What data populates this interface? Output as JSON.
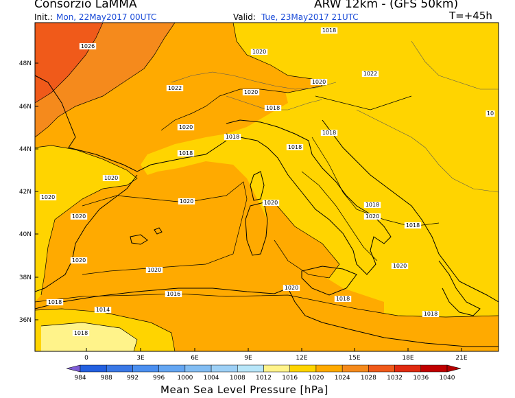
{
  "header": {
    "app_title": "Consorzio LaMMA",
    "model": "ARW 12km - (GFS 50km)",
    "init_label": "Init.:",
    "init_value": "Mon, 22May2017 00UTC",
    "valid_label": "Valid:",
    "valid_value": "Tue, 23May2017 21UTC",
    "forecast_hour": "T=+45h"
  },
  "map": {
    "lat_labels": [
      "48N",
      "46N",
      "44N",
      "42N",
      "40N",
      "38N",
      "36N"
    ],
    "lon_labels": [
      "0",
      "3E",
      "6E",
      "9E",
      "12E",
      "15E",
      "18E",
      "21E"
    ],
    "isobar_labels": [
      "1026",
      "1022",
      "1020",
      "1020",
      "1020",
      "1018",
      "1018",
      "1018",
      "1018",
      "1018",
      "1020",
      "1020",
      "1020",
      "1020",
      "1020",
      "1020",
      "1020",
      "1020",
      "1020",
      "1018",
      "1018",
      "1016",
      "1014",
      "1018",
      "1018",
      "1018",
      "1020",
      "1018",
      "1022",
      "1020",
      "1018",
      "10"
    ]
  },
  "legend": {
    "title": "Mean Sea Level Pressure [hPa]",
    "values": [
      "984",
      "988",
      "992",
      "996",
      "1000",
      "1004",
      "1008",
      "1012",
      "1016",
      "1020",
      "1024",
      "1028",
      "1032",
      "1036",
      "1040"
    ],
    "colors": [
      "#7d5cd6",
      "#2360e0",
      "#3a78e6",
      "#4b8ff0",
      "#64a6f2",
      "#82bdf3",
      "#9dd0f6",
      "#b8e6f9",
      "#fff38a",
      "#ffd400",
      "#ffaa00",
      "#f58a1c",
      "#f05a1a",
      "#e02a10",
      "#c00000",
      "#b40000"
    ]
  }
}
